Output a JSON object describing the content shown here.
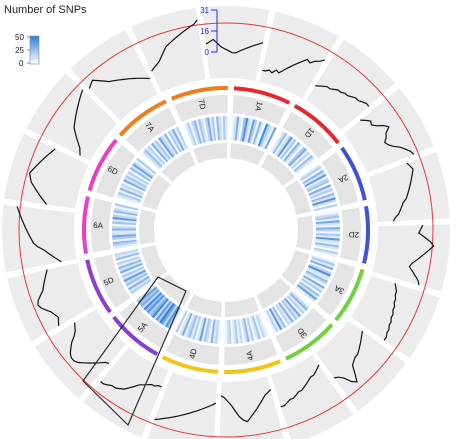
{
  "chart_data": {
    "type": "circos",
    "legend": {
      "title": "Number of SNPs",
      "ticks": [
        "50",
        "25",
        "0"
      ],
      "color_low": "#ffffff",
      "color_high": "#2f7fd6"
    },
    "outer_scale": {
      "ticks": [
        "31",
        "16",
        "0"
      ],
      "color": "#2b2bd6"
    },
    "chromosomes": [
      {
        "name": "1A",
        "color": "#e8262b",
        "heat": [
          5,
          12,
          30,
          8,
          3,
          22,
          41,
          15,
          6,
          35,
          18,
          4,
          27,
          9,
          2,
          44,
          20,
          11,
          7,
          33
        ]
      },
      {
        "name": "1D",
        "color": "#e8262b",
        "heat": [
          3,
          10,
          25,
          6,
          14,
          38,
          9,
          21,
          4,
          29,
          12,
          2,
          19,
          31,
          7,
          16,
          5,
          24,
          11,
          3
        ]
      },
      {
        "name": "2A",
        "color": "#3d52d5",
        "heat": [
          8,
          19,
          4,
          27,
          12,
          36,
          6,
          15,
          23,
          3,
          31,
          10,
          18,
          5,
          26,
          9,
          40,
          13,
          2,
          17
        ]
      },
      {
        "name": "2D",
        "color": "#3d52d5",
        "heat": [
          4,
          14,
          22,
          7,
          33,
          11,
          5,
          28,
          16,
          3,
          20,
          9,
          37,
          12,
          6,
          25,
          10,
          2,
          18,
          8
        ]
      },
      {
        "name": "3A",
        "color": "#6fd13f",
        "heat": [
          6,
          21,
          9,
          30,
          4,
          17,
          42,
          11,
          7,
          26,
          14,
          3,
          32,
          8,
          19,
          5,
          23,
          12,
          36,
          10
        ]
      },
      {
        "name": "3D",
        "color": "#6fd13f",
        "heat": [
          2,
          13,
          27,
          8,
          18,
          5,
          34,
          12,
          21,
          6,
          29,
          9,
          15,
          3,
          24,
          11,
          38,
          7,
          16,
          4
        ]
      },
      {
        "name": "4A",
        "color": "#f2c318",
        "heat": [
          3,
          8,
          15,
          5,
          22,
          10,
          4,
          18,
          7,
          26,
          12,
          2,
          14,
          6,
          20,
          9,
          3,
          17,
          11,
          5
        ]
      },
      {
        "name": "4D",
        "color": "#f2c318",
        "heat": [
          5,
          16,
          9,
          28,
          4,
          13,
          21,
          7,
          35,
          11,
          3,
          19,
          8,
          24,
          14,
          6,
          30,
          10,
          2,
          18
        ]
      },
      {
        "name": "5A",
        "color": "#8a3fd1",
        "heat": [
          9,
          24,
          40,
          15,
          33,
          48,
          21,
          37,
          12,
          45,
          28,
          18,
          39,
          26,
          44,
          16,
          31,
          22,
          36,
          14
        ]
      },
      {
        "name": "5D",
        "color": "#8a3fd1",
        "heat": [
          4,
          18,
          11,
          29,
          7,
          23,
          14,
          36,
          9,
          20,
          5,
          31,
          12,
          26,
          8,
          17,
          3,
          24,
          10,
          15
        ]
      },
      {
        "name": "6A",
        "color": "#ea3fc5",
        "heat": [
          7,
          15,
          26,
          5,
          19,
          33,
          11,
          8,
          28,
          14,
          4,
          22,
          9,
          37,
          16,
          6,
          25,
          12,
          3,
          20
        ]
      },
      {
        "name": "6D",
        "color": "#ea3fc5",
        "heat": [
          3,
          11,
          20,
          6,
          27,
          9,
          16,
          4,
          31,
          12,
          22,
          7,
          18,
          2,
          26,
          10,
          35,
          14,
          5,
          19
        ]
      },
      {
        "name": "7A",
        "color": "#f07c1e",
        "heat": [
          5,
          13,
          24,
          8,
          17,
          4,
          29,
          11,
          21,
          6,
          34,
          15,
          9,
          26,
          3,
          19,
          12,
          30,
          7,
          16
        ]
      },
      {
        "name": "7D",
        "color": "#f07c1e",
        "heat": [
          2,
          9,
          18,
          5,
          14,
          27,
          7,
          22,
          11,
          4,
          16,
          31,
          8,
          20,
          3,
          25,
          13,
          6,
          19,
          10
        ]
      }
    ],
    "lines": [
      [
        3,
        3,
        4,
        3,
        5,
        4,
        6,
        8,
        10,
        12,
        14,
        16,
        15,
        17,
        18,
        20
      ],
      [
        6,
        7,
        8,
        9,
        9,
        10,
        11,
        11,
        12,
        12,
        13,
        14,
        14,
        15,
        16,
        16
      ],
      [
        8,
        10,
        12,
        11,
        13,
        16,
        18,
        15,
        14,
        12,
        13,
        15,
        18,
        20,
        22,
        23
      ],
      [
        18,
        19,
        20,
        19,
        18,
        17,
        16,
        15,
        14,
        13,
        11,
        10,
        9,
        8,
        6,
        5
      ],
      [
        20,
        19,
        18,
        21,
        24,
        26,
        24,
        22,
        20,
        18,
        16,
        15,
        17,
        19,
        21,
        22
      ],
      [
        10,
        11,
        12,
        12,
        13,
        13,
        14,
        14,
        15,
        15,
        16,
        16,
        17,
        17,
        18,
        18
      ],
      [
        6,
        7,
        8,
        9,
        10,
        11,
        12,
        12,
        13,
        14,
        18,
        22,
        20,
        16,
        14,
        13
      ],
      [
        3,
        4,
        5,
        6,
        6,
        7,
        8,
        9,
        10,
        10,
        11,
        12,
        12,
        13,
        14,
        14
      ],
      [
        4,
        5,
        6,
        8,
        10,
        12,
        14,
        16,
        18,
        17,
        15,
        12,
        9,
        7,
        5,
        4
      ],
      [
        8,
        9,
        10,
        11,
        12,
        13,
        14,
        15,
        16,
        17,
        18,
        19,
        20,
        21,
        22,
        23
      ],
      [
        6,
        6,
        7,
        7,
        8,
        9,
        10,
        12,
        14,
        16,
        17,
        18,
        18,
        19,
        20,
        20
      ],
      [
        10,
        11,
        13,
        15,
        17,
        19,
        21,
        22,
        22,
        21,
        19,
        17,
        14,
        12,
        11,
        10
      ],
      [
        18,
        17,
        16,
        17,
        18,
        20,
        22,
        23,
        22,
        20,
        18,
        17,
        16,
        15,
        14,
        13
      ],
      [
        5,
        7,
        9,
        11,
        13,
        16,
        18,
        19,
        20,
        21,
        22,
        23,
        24,
        25,
        26,
        27
      ],
      [
        12,
        14,
        16,
        18,
        20,
        22,
        23,
        24,
        23,
        22,
        21,
        20,
        19,
        18,
        17,
        16
      ],
      [
        3,
        4,
        5,
        7,
        9,
        11,
        13,
        14,
        15,
        16,
        17,
        18,
        19,
        20,
        21,
        22
      ],
      [
        20,
        21,
        22,
        20,
        18,
        16,
        15,
        14,
        13,
        12,
        11,
        10,
        9,
        8,
        7,
        6
      ],
      [
        9,
        10,
        11,
        12,
        14,
        16,
        18,
        19,
        20,
        21,
        22,
        23,
        24,
        25,
        26,
        28
      ],
      [
        15,
        16,
        17,
        15,
        13,
        12,
        11,
        10,
        10,
        11,
        12,
        13,
        14,
        15,
        16,
        17
      ]
    ]
  }
}
